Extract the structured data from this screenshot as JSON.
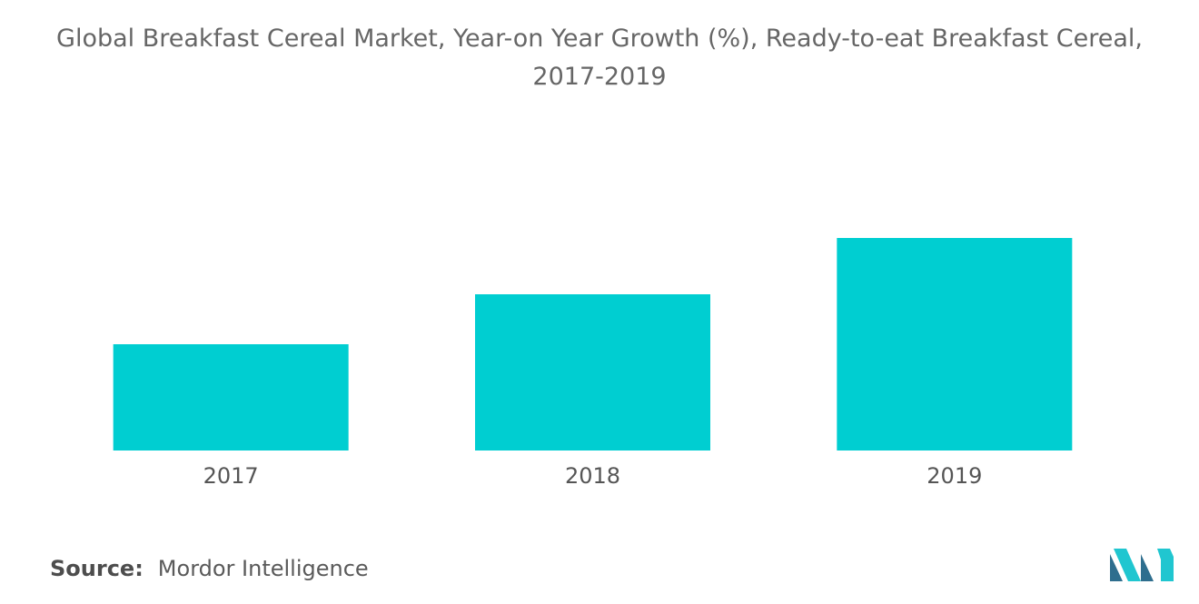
{
  "title_line1": "Global Breakfast Cereal Market, Year-on Year Growth (%), Ready-to-eat Breakfast Cereal,",
  "title_line2": "2017-2019",
  "source": {
    "label": "Source:",
    "value": "Mordor Intelligence"
  },
  "colors": {
    "bar": "#00CED1",
    "tick_text": "#555555",
    "logo_dark": "#2e6e8e",
    "logo_light": "#20c6d0"
  },
  "chart_data": {
    "type": "bar",
    "categories": [
      "2017",
      "2018",
      "2019"
    ],
    "values": [
      1.0,
      1.47,
      2.0
    ],
    "title": "Global Breakfast Cereal Market, Year-on Year Growth (%), Ready-to-eat Breakfast Cereal, 2017-2019",
    "xlabel": "",
    "ylabel": "",
    "ylim": [
      0,
      2.0
    ],
    "grid": false,
    "legend": "none",
    "value_axis_shown": false
  }
}
